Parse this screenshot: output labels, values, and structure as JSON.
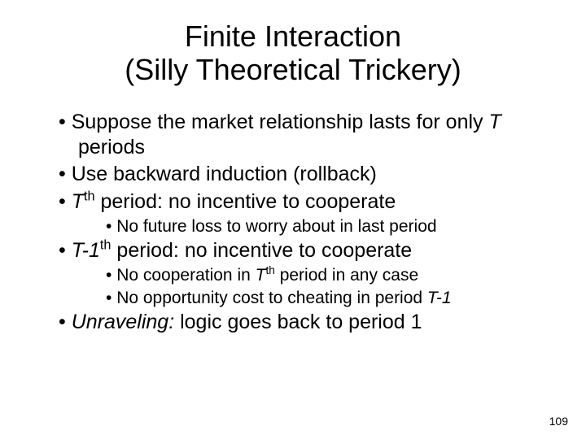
{
  "title_line1": "Finite Interaction",
  "title_line2": "(Silly Theoretical Trickery)",
  "bullets": {
    "b1_pre": "Suppose the market relationship lasts for only ",
    "b1_T": "T",
    "b1_post": " periods",
    "b2": "Use backward induction (rollback)",
    "b3_T": "T",
    "b3_sup": "th",
    "b3_post": " period: no incentive to cooperate",
    "b3a": "No future loss to worry about in last period",
    "b4_T": "T-1",
    "b4_sup": "th",
    "b4_post": " period: no incentive to cooperate",
    "b4a_pre": "No cooperation in ",
    "b4a_T": "T",
    "b4a_sup": "th",
    "b4a_post": " period in any case",
    "b4b_pre": "No opportunity cost to cheating in period ",
    "b4b_T": "T-1",
    "b5_unravel": "Unraveling:",
    "b5_post": " logic goes back to period 1"
  },
  "page_number": "109",
  "colors": {
    "background": "#ffffff",
    "text": "#000000"
  },
  "fonts": {
    "family": "Comic Sans MS",
    "title_size_pt": 36,
    "l1_size_pt": 25,
    "l2_size_pt": 21,
    "pagenum_size_pt": 14
  }
}
